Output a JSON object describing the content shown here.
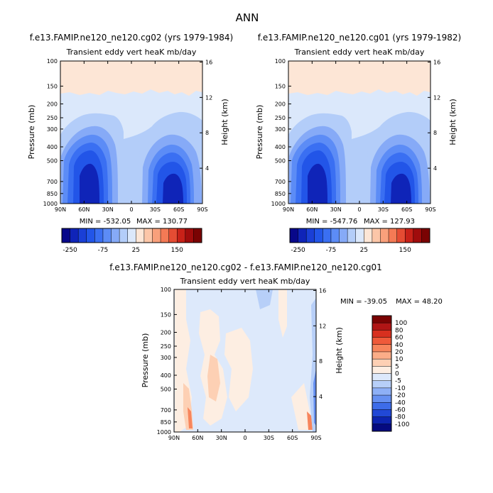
{
  "figure": {
    "title": "ANN"
  },
  "chart_data": [
    {
      "type": "heatmap",
      "panel": "top-left",
      "case_title": "f.e13.FAMIP.ne120_ne120.cg02 (yrs 1979-1984)",
      "plot_title": "Transient eddy vert heaK mb/day",
      "xlabel": "",
      "ylabel": "Pressure (mb)",
      "y2label": "Height (km)",
      "x_ticks": [
        "90N",
        "60N",
        "30N",
        "0",
        "30S",
        "60S",
        "90S"
      ],
      "y_ticks": [
        "100",
        "150",
        "200",
        "250",
        "300",
        "400",
        "500",
        "700",
        "850",
        "1000"
      ],
      "y2_ticks": [
        "16",
        "12",
        "8",
        "4"
      ],
      "min_label": "MIN = -532.05",
      "max_label": "MAX = 130.77",
      "colorbar_labels": [
        "-250",
        "-75",
        "25",
        "150"
      ],
      "levels": [
        -300,
        -250,
        -200,
        -150,
        -100,
        -75,
        -50,
        -25,
        0,
        25,
        50,
        75,
        100,
        125,
        150,
        200
      ],
      "colors": [
        "#08088a",
        "#0f24b8",
        "#1a3fd6",
        "#2255e8",
        "#3a6ff2",
        "#5c8cf6",
        "#86aaf7",
        "#b3cdf9",
        "#dbe8fb",
        "#fde6d6",
        "#fcc6a8",
        "#f9a07b",
        "#f47a55",
        "#e54c33",
        "#c82118",
        "#a00c0c",
        "#7a0303"
      ],
      "min": -532.05,
      "max": 130.77
    },
    {
      "type": "heatmap",
      "panel": "top-right",
      "case_title": "f.e13.FAMIP.ne120_ne120.cg01 (yrs 1979-1982)",
      "plot_title": "Transient eddy vert heaK mb/day",
      "xlabel": "",
      "ylabel": "Pressure (mb)",
      "y2label": "Height (km)",
      "x_ticks": [
        "90N",
        "60N",
        "30N",
        "0",
        "30S",
        "60S",
        "90S"
      ],
      "y_ticks": [
        "100",
        "150",
        "200",
        "250",
        "300",
        "400",
        "500",
        "700",
        "850",
        "1000"
      ],
      "y2_ticks": [
        "16",
        "12",
        "8",
        "4"
      ],
      "min_label": "MIN = -547.76",
      "max_label": "MAX = 127.93",
      "colorbar_labels": [
        "-250",
        "-75",
        "25",
        "150"
      ],
      "levels": [
        -300,
        -250,
        -200,
        -150,
        -100,
        -75,
        -50,
        -25,
        0,
        25,
        50,
        75,
        100,
        125,
        150,
        200
      ],
      "colors": [
        "#08088a",
        "#0f24b8",
        "#1a3fd6",
        "#2255e8",
        "#3a6ff2",
        "#5c8cf6",
        "#86aaf7",
        "#b3cdf9",
        "#dbe8fb",
        "#fde6d6",
        "#fcc6a8",
        "#f9a07b",
        "#f47a55",
        "#e54c33",
        "#c82118",
        "#a00c0c",
        "#7a0303"
      ],
      "min": -547.76,
      "max": 127.93
    },
    {
      "type": "heatmap",
      "panel": "bottom",
      "case_title": "f.e13.FAMIP.ne120_ne120.cg02 - f.e13.FAMIP.ne120_ne120.cg01",
      "plot_title": "Transient eddy vert heaK mb/day",
      "xlabel": "",
      "ylabel": "Pressure (mb)",
      "y2label": "Height (km)",
      "x_ticks": [
        "90N",
        "60N",
        "30N",
        "0",
        "30S",
        "60S",
        "90S"
      ],
      "y_ticks": [
        "100",
        "150",
        "200",
        "250",
        "300",
        "400",
        "500",
        "700",
        "850",
        "1000"
      ],
      "y2_ticks": [
        "16",
        "12",
        "8",
        "4"
      ],
      "min_label": "MIN = -39.05",
      "max_label": "MAX =  48.20",
      "colorbar_labels": [
        "100",
        "80",
        "60",
        "40",
        "20",
        "10",
        "5",
        "0",
        "-5",
        "-10",
        "-20",
        "-40",
        "-60",
        "-80",
        "-100"
      ],
      "colors": [
        "#7a0303",
        "#b01515",
        "#d8301f",
        "#ef5a3a",
        "#f7855c",
        "#fbad88",
        "#fdd0b4",
        "#fdeee2",
        "#dde9fb",
        "#b7cff8",
        "#8eb0f6",
        "#6690f1",
        "#3d6ce9",
        "#2148d6",
        "#0d24b0",
        "#050a80"
      ],
      "min": -39.05,
      "max": 48.2
    }
  ]
}
